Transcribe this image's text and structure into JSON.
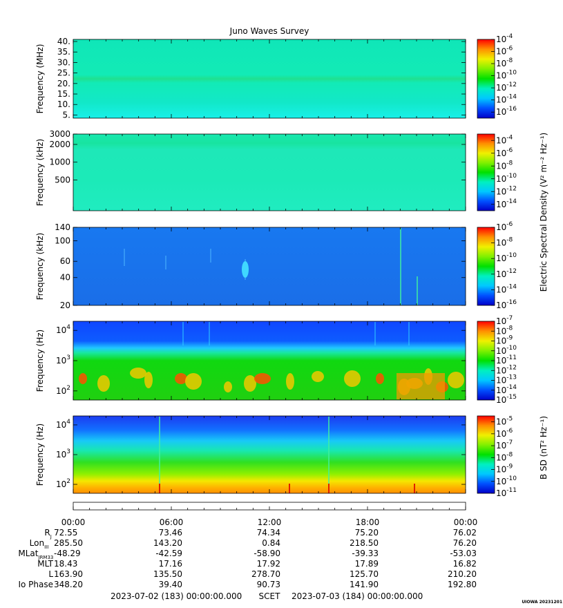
{
  "title": "Juno Waves Survey",
  "credit": "UIOWA 20231201",
  "scet_line": {
    "start": "2023-07-02 (183) 00:00:00.000",
    "label": "SCET",
    "end": "2023-07-03 (184) 00:00:00.000"
  },
  "shared_colorbar_label": "Electric Spectral Density (V² m⁻² Hz⁻¹)",
  "colors": {
    "colormap": [
      "#0000c8",
      "#0050ff",
      "#00c8ff",
      "#00f0c0",
      "#00e000",
      "#80f000",
      "#f0f000",
      "#ff9000",
      "#ff0000"
    ]
  },
  "chart_data": [
    {
      "type": "heatmap",
      "panel": "mhz",
      "ylabel": "Frequency (MHz)",
      "ylim": [
        3.5,
        41
      ],
      "yscale": "linear",
      "yticks": [
        5,
        10,
        15,
        20,
        25,
        30,
        35,
        40
      ],
      "ytick_labels": [
        "5.",
        "10.",
        "15.",
        "20.",
        "25.",
        "30.",
        "35.",
        "40."
      ],
      "colorbar": {
        "min_exp": -17,
        "max_exp": -4,
        "labels": [
          "-4",
          "-6",
          "-8",
          "-10",
          "-12",
          "-14",
          "-16"
        ],
        "label_exps": [
          -4,
          -6,
          -8,
          -10,
          -12,
          -14,
          -16
        ]
      },
      "description": "Uniform background near 1e-13 with a brighter horizontal band near 21 MHz"
    },
    {
      "type": "heatmap",
      "panel": "khz_high",
      "ylabel": "Frequency (kHz)",
      "ylim": [
        150,
        3000
      ],
      "yscale": "log",
      "yticks": [
        500,
        1000,
        2000,
        3000
      ],
      "ytick_labels": [
        "500",
        "1000",
        "2000",
        "3000"
      ],
      "colorbar": {
        "min_exp": -15,
        "max_exp": -3,
        "labels": [
          "-4",
          "-6",
          "-8",
          "-10",
          "-12",
          "-14"
        ],
        "label_exps": [
          -4,
          -6,
          -8,
          -10,
          -12,
          -14
        ]
      },
      "description": "Uniform background near 1e-12 with a faint band near 2000 kHz"
    },
    {
      "type": "heatmap",
      "panel": "khz_low",
      "ylabel": "Frequency (kHz)",
      "ylim": [
        20,
        140
      ],
      "yscale": "log",
      "yticks": [
        20,
        40,
        60,
        100,
        140
      ],
      "ytick_labels": [
        "20",
        "40",
        "60",
        "100",
        "140"
      ],
      "colorbar": {
        "min_exp": -16,
        "max_exp": -6,
        "labels": [
          "-6",
          "-8",
          "-10",
          "-12",
          "-14",
          "-16"
        ],
        "label_exps": [
          -6,
          -8,
          -10,
          -12,
          -14,
          -16
        ]
      },
      "description": "Mostly blue background with scattered faint bursts and two vertical lines near 20:00 and 21:00"
    },
    {
      "type": "heatmap",
      "panel": "hz",
      "ylabel": "Frequency (Hz)",
      "ylim": [
        50,
        20000
      ],
      "yscale": "log",
      "yticks": [
        100,
        1000,
        10000
      ],
      "ytick_base": "10",
      "ytick_exps": [
        "2",
        "3",
        "4"
      ],
      "colorbar": {
        "min_exp": -15,
        "max_exp": -7,
        "labels": [
          "-7",
          "-8",
          "-9",
          "-10",
          "-11",
          "-12",
          "-13",
          "-14",
          "-15"
        ],
        "label_exps": [
          -7,
          -8,
          -9,
          -10,
          -11,
          -12,
          -13,
          -14,
          -15
        ]
      },
      "description": "Blue above ~2 kHz, cyan transition, green below ~800 Hz with intense yellow-red emission bursts between 100 and 300 Hz"
    },
    {
      "type": "heatmap",
      "panel": "bsd",
      "ylabel": "Frequency (Hz)",
      "ylim": [
        50,
        20000
      ],
      "yscale": "log",
      "yticks": [
        100,
        1000,
        10000
      ],
      "ytick_base": "10",
      "ytick_exps": [
        "2",
        "3",
        "4"
      ],
      "colorbar_label": "B SD (nT² Hz⁻¹)",
      "colorbar": {
        "min_exp": -11,
        "max_exp": -4.5,
        "labels": [
          "-5",
          "-6",
          "-7",
          "-8",
          "-9",
          "-10",
          "-11"
        ],
        "label_exps": [
          -5,
          -6,
          -7,
          -8,
          -9,
          -10,
          -11
        ]
      },
      "description": "Smooth gradient from blue at high frequency to yellow/orange below 100 Hz with vertical spikes near 05:30 and 16:00"
    }
  ],
  "time_axis": {
    "ticks": [
      "00:00",
      "06:00",
      "12:00",
      "18:00",
      "00:00"
    ],
    "rows": [
      {
        "label": "R",
        "sub": "J",
        "values": [
          "72.55",
          "73.46",
          "74.34",
          "75.20",
          "76.02"
        ]
      },
      {
        "label": "Lon",
        "sub": "III",
        "values": [
          "285.50",
          "143.20",
          "0.84",
          "218.50",
          "76.20"
        ]
      },
      {
        "label": "MLat",
        "sub": "JRM33",
        "values": [
          "-48.29",
          "-42.59",
          "-58.90",
          "-39.33",
          "-53.03"
        ]
      },
      {
        "label": "MLT",
        "sub": "",
        "values": [
          "18.43",
          "17.16",
          "17.92",
          "17.89",
          "16.82"
        ]
      },
      {
        "label": "L",
        "sub": "",
        "values": [
          "163.90",
          "135.50",
          "278.70",
          "125.70",
          "210.20"
        ]
      },
      {
        "label": "Io Phase",
        "sub": "",
        "values": [
          "348.20",
          "39.40",
          "90.73",
          "141.90",
          "192.80"
        ]
      }
    ]
  }
}
